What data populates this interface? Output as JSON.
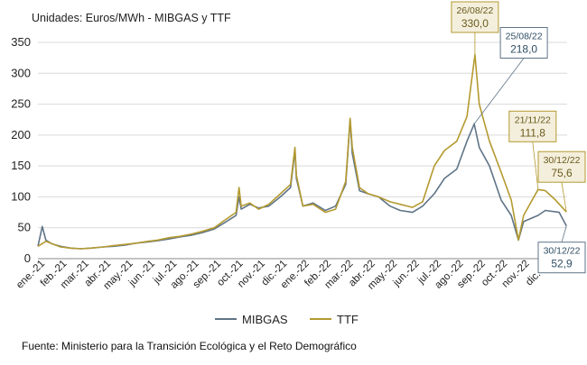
{
  "header": {
    "units": "Unidades:  Euros/MWh - MIBGAS y TTF"
  },
  "footer": {
    "source": "Fuente: Ministerio para la Transición Ecológica y el Reto Demográfico"
  },
  "colors": {
    "mibgas": "#5f7487",
    "ttf": "#b49a30",
    "grid": "#d9d9d9",
    "axis": "#888888"
  },
  "chart_data": {
    "type": "line",
    "ylim": [
      0,
      350
    ],
    "yticks": [
      0,
      50,
      100,
      150,
      200,
      250,
      300,
      350
    ],
    "xlabel": "",
    "ylabel": "",
    "x_tick_labels": [
      "ene.-21",
      "feb.-21",
      "mar.-21",
      "abr.-21",
      "may.-21",
      "jun.-21",
      "jul.-21",
      "ago.-21",
      "sep.-21",
      "oct.-21",
      "nov.-21",
      "dic.-21",
      "ene.-22",
      "feb.-22",
      "mar.-22",
      "abr.-22",
      "may.-22",
      "jun.-22",
      "jul.-22",
      "ago.-22",
      "sep.-22",
      "oct.-22",
      "nov.-22",
      "dic.-22"
    ],
    "legend_position": "bottom-center",
    "series": [
      {
        "name": "MIBGAS",
        "color": "#5f7487",
        "points": [
          [
            "2021-01-01",
            20
          ],
          [
            "2021-01-07",
            52
          ],
          [
            "2021-01-12",
            30
          ],
          [
            "2021-01-20",
            24
          ],
          [
            "2021-02-01",
            20
          ],
          [
            "2021-02-15",
            17
          ],
          [
            "2021-03-01",
            16
          ],
          [
            "2021-03-15",
            17
          ],
          [
            "2021-04-01",
            19
          ],
          [
            "2021-04-15",
            20
          ],
          [
            "2021-05-01",
            22
          ],
          [
            "2021-05-15",
            25
          ],
          [
            "2021-06-01",
            27
          ],
          [
            "2021-06-15",
            29
          ],
          [
            "2021-07-01",
            32
          ],
          [
            "2021-07-15",
            35
          ],
          [
            "2021-08-01",
            38
          ],
          [
            "2021-08-15",
            42
          ],
          [
            "2021-09-01",
            48
          ],
          [
            "2021-09-15",
            58
          ],
          [
            "2021-10-01",
            70
          ],
          [
            "2021-10-05",
            100
          ],
          [
            "2021-10-08",
            80
          ],
          [
            "2021-10-20",
            88
          ],
          [
            "2021-11-01",
            82
          ],
          [
            "2021-11-15",
            85
          ],
          [
            "2021-12-01",
            100
          ],
          [
            "2021-12-15",
            115
          ],
          [
            "2021-12-21",
            175
          ],
          [
            "2021-12-23",
            130
          ],
          [
            "2022-01-01",
            85
          ],
          [
            "2022-01-15",
            90
          ],
          [
            "2022-02-01",
            78
          ],
          [
            "2022-02-15",
            85
          ],
          [
            "2022-03-01",
            120
          ],
          [
            "2022-03-07",
            225
          ],
          [
            "2022-03-10",
            170
          ],
          [
            "2022-03-20",
            110
          ],
          [
            "2022-04-01",
            105
          ],
          [
            "2022-04-15",
            100
          ],
          [
            "2022-05-01",
            85
          ],
          [
            "2022-05-15",
            78
          ],
          [
            "2022-06-01",
            75
          ],
          [
            "2022-06-15",
            85
          ],
          [
            "2022-07-01",
            105
          ],
          [
            "2022-07-15",
            130
          ],
          [
            "2022-08-01",
            145
          ],
          [
            "2022-08-15",
            190
          ],
          [
            "2022-08-25",
            218
          ],
          [
            "2022-09-01",
            180
          ],
          [
            "2022-09-15",
            150
          ],
          [
            "2022-10-01",
            95
          ],
          [
            "2022-10-15",
            70
          ],
          [
            "2022-10-25",
            30
          ],
          [
            "2022-11-01",
            60
          ],
          [
            "2022-11-21",
            70
          ],
          [
            "2022-12-01",
            78
          ],
          [
            "2022-12-20",
            75
          ],
          [
            "2022-12-30",
            52.9
          ]
        ]
      },
      {
        "name": "TTF",
        "color": "#b49a30",
        "points": [
          [
            "2021-01-01",
            20
          ],
          [
            "2021-01-12",
            28
          ],
          [
            "2021-02-01",
            19
          ],
          [
            "2021-02-15",
            17
          ],
          [
            "2021-03-01",
            16
          ],
          [
            "2021-03-15",
            17
          ],
          [
            "2021-04-01",
            19
          ],
          [
            "2021-04-15",
            21
          ],
          [
            "2021-05-01",
            23
          ],
          [
            "2021-05-15",
            25
          ],
          [
            "2021-06-01",
            28
          ],
          [
            "2021-06-15",
            30
          ],
          [
            "2021-07-01",
            34
          ],
          [
            "2021-07-15",
            36
          ],
          [
            "2021-08-01",
            40
          ],
          [
            "2021-08-15",
            44
          ],
          [
            "2021-09-01",
            50
          ],
          [
            "2021-09-15",
            62
          ],
          [
            "2021-10-01",
            75
          ],
          [
            "2021-10-05",
            115
          ],
          [
            "2021-10-08",
            85
          ],
          [
            "2021-10-20",
            90
          ],
          [
            "2021-11-01",
            80
          ],
          [
            "2021-11-15",
            88
          ],
          [
            "2021-12-01",
            105
          ],
          [
            "2021-12-15",
            120
          ],
          [
            "2021-12-21",
            180
          ],
          [
            "2021-12-23",
            135
          ],
          [
            "2022-01-01",
            85
          ],
          [
            "2022-01-15",
            88
          ],
          [
            "2022-02-01",
            75
          ],
          [
            "2022-02-15",
            80
          ],
          [
            "2022-03-01",
            125
          ],
          [
            "2022-03-07",
            227
          ],
          [
            "2022-03-10",
            180
          ],
          [
            "2022-03-20",
            115
          ],
          [
            "2022-04-01",
            105
          ],
          [
            "2022-04-15",
            100
          ],
          [
            "2022-05-01",
            92
          ],
          [
            "2022-05-15",
            88
          ],
          [
            "2022-06-01",
            83
          ],
          [
            "2022-06-15",
            92
          ],
          [
            "2022-07-01",
            150
          ],
          [
            "2022-07-15",
            175
          ],
          [
            "2022-08-01",
            190
          ],
          [
            "2022-08-15",
            230
          ],
          [
            "2022-08-26",
            330
          ],
          [
            "2022-09-01",
            250
          ],
          [
            "2022-09-15",
            190
          ],
          [
            "2022-10-01",
            140
          ],
          [
            "2022-10-15",
            95
          ],
          [
            "2022-10-25",
            30
          ],
          [
            "2022-11-01",
            70
          ],
          [
            "2022-11-21",
            111.8
          ],
          [
            "2022-12-01",
            110
          ],
          [
            "2022-12-15",
            95
          ],
          [
            "2022-12-30",
            75.6
          ]
        ]
      }
    ],
    "annotations": [
      {
        "series": "TTF",
        "date": "26/08/22",
        "value": "330,0",
        "at": "2022-08-26",
        "y": 330
      },
      {
        "series": "MIBGAS",
        "date": "25/08/22",
        "value": "218,0",
        "at": "2022-08-25",
        "y": 218
      },
      {
        "series": "TTF",
        "date": "21/11/22",
        "value": "111,8",
        "at": "2022-11-21",
        "y": 111.8
      },
      {
        "series": "TTF",
        "date": "30/12/22",
        "value": "75,6",
        "at": "2022-12-30",
        "y": 75.6
      },
      {
        "series": "MIBGAS",
        "date": "30/12/22",
        "value": "52,9",
        "at": "2022-12-30",
        "y": 52.9
      }
    ]
  }
}
